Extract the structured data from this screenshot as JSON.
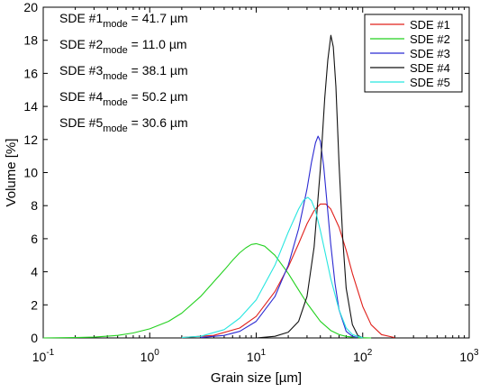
{
  "chart_data": {
    "type": "line",
    "title": "",
    "xlabel": "Grain size [µm]",
    "ylabel": "Volume [%]",
    "xscale": "log",
    "xlim": [
      0.1,
      1000
    ],
    "ylim": [
      0,
      20
    ],
    "x_ticks": [
      {
        "value": 0.1,
        "base": "10",
        "exp": "-1"
      },
      {
        "value": 1,
        "base": "10",
        "exp": "0"
      },
      {
        "value": 10,
        "base": "10",
        "exp": "1"
      },
      {
        "value": 100,
        "base": "10",
        "exp": "2"
      },
      {
        "value": 1000,
        "base": "10",
        "exp": "3"
      }
    ],
    "y_ticks": [
      0,
      2,
      4,
      6,
      8,
      10,
      12,
      14,
      16,
      18,
      20
    ],
    "grid": false,
    "legend_position": "top-right",
    "annotations": [
      {
        "prefix": "SDE #1",
        "sub": "mode",
        "value": " = 41.7 ",
        "unit": "µm"
      },
      {
        "prefix": "SDE #2",
        "sub": "mode",
        "value": " = 11.0 ",
        "unit": "µm"
      },
      {
        "prefix": "SDE #3",
        "sub": "mode",
        "value": " = 38.1 ",
        "unit": "µm"
      },
      {
        "prefix": "SDE #4",
        "sub": "mode",
        "value": " = 50.2 ",
        "unit": "µm"
      },
      {
        "prefix": "SDE #5",
        "sub": "mode",
        "value": " = 30.6 ",
        "unit": "µm"
      }
    ],
    "series": [
      {
        "name": "SDE #1",
        "color": "#e0201b",
        "x": [
          2,
          4,
          7,
          10,
          15,
          20,
          25,
          30,
          35,
          40,
          45,
          50,
          60,
          70,
          80,
          100,
          120,
          150,
          200
        ],
        "y": [
          0.02,
          0.15,
          0.6,
          1.3,
          2.8,
          4.3,
          5.7,
          6.9,
          7.7,
          8.1,
          8.1,
          7.8,
          6.7,
          5.3,
          3.9,
          1.9,
          0.8,
          0.2,
          0.02
        ]
      },
      {
        "name": "SDE #2",
        "color": "#23d11f",
        "x": [
          0.1,
          0.2,
          0.3,
          0.5,
          0.7,
          1,
          1.5,
          2,
          3,
          4,
          5,
          6,
          7,
          8,
          9,
          10,
          12,
          15,
          20,
          25,
          30,
          40,
          50,
          60,
          70,
          90,
          100,
          120
        ],
        "y": [
          0.0,
          0.02,
          0.05,
          0.15,
          0.3,
          0.55,
          1.0,
          1.5,
          2.5,
          3.4,
          4.1,
          4.7,
          5.15,
          5.45,
          5.65,
          5.7,
          5.55,
          5.0,
          3.9,
          2.9,
          2.1,
          1.0,
          0.45,
          0.2,
          0.09,
          0.02,
          0.01,
          0.0
        ]
      },
      {
        "name": "SDE #3",
        "color": "#2b2ad2",
        "x": [
          3,
          5,
          7,
          10,
          15,
          20,
          25,
          30,
          33,
          36,
          38.1,
          40,
          43,
          46,
          50,
          55,
          60,
          70,
          80,
          90
        ],
        "y": [
          0.02,
          0.15,
          0.4,
          1.0,
          2.5,
          4.4,
          6.6,
          9.0,
          10.6,
          11.8,
          12.2,
          11.9,
          10.4,
          8.3,
          5.7,
          3.3,
          1.7,
          0.4,
          0.1,
          0.02
        ]
      },
      {
        "name": "SDE #4",
        "color": "#111111",
        "x": [
          10,
          15,
          20,
          25,
          30,
          35,
          40,
          44,
          47,
          50.2,
          53,
          56,
          60,
          65,
          70,
          80,
          90,
          100
        ],
        "y": [
          0.0,
          0.1,
          0.35,
          1.0,
          2.5,
          5.5,
          10.2,
          14.5,
          16.8,
          18.3,
          17.6,
          15.2,
          10.5,
          6.0,
          3.0,
          0.8,
          0.15,
          0.0
        ]
      },
      {
        "name": "SDE #5",
        "color": "#27e6e0",
        "x": [
          2,
          3,
          5,
          7,
          10,
          15,
          20,
          25,
          28,
          30.6,
          33,
          36,
          40,
          45,
          50,
          60,
          70,
          80,
          100
        ],
        "y": [
          0.02,
          0.1,
          0.5,
          1.2,
          2.3,
          4.4,
          6.4,
          7.8,
          8.35,
          8.5,
          8.3,
          7.7,
          6.5,
          5.0,
          3.6,
          1.7,
          0.6,
          0.2,
          0.01
        ]
      }
    ]
  }
}
